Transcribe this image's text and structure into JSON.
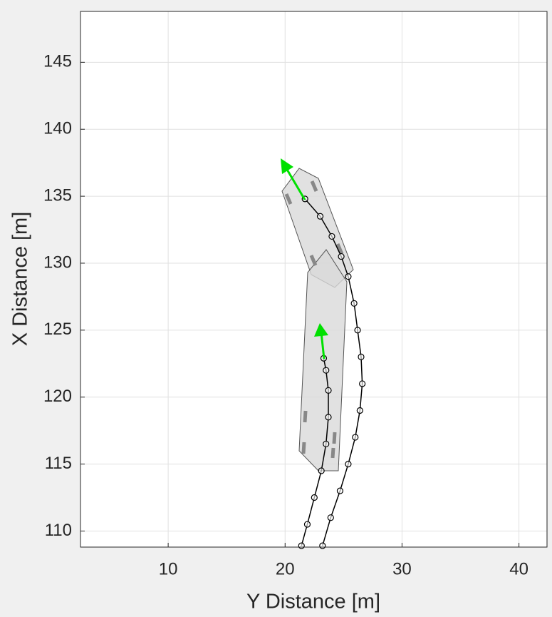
{
  "chart_data": {
    "type": "line",
    "xlabel": "Y Distance [m]",
    "ylabel": "X Distance [m]",
    "xlim": [
      2.5,
      42.4
    ],
    "ylim": [
      108.8,
      148.8
    ],
    "xticks": [
      10,
      20,
      30,
      40
    ],
    "yticks": [
      110,
      115,
      120,
      125,
      130,
      135,
      140,
      145
    ],
    "grid": true,
    "marker": "o",
    "series": [
      {
        "color": "#000000",
        "x": [
          23.2,
          23.9,
          24.7,
          25.4,
          26.0,
          26.4,
          26.6,
          26.5,
          26.2,
          25.9,
          25.4,
          24.8,
          24.0,
          23.0,
          21.7
        ],
        "values": [
          108.9,
          111,
          113,
          115,
          117,
          119,
          121,
          123,
          125,
          127,
          129,
          130.5,
          132,
          133.5,
          134.8
        ]
      },
      {
        "color": "#000000",
        "x": [
          21.4,
          21.9,
          22.5,
          23.1,
          23.5,
          23.7,
          23.7,
          23.5,
          23.3
        ],
        "values": [
          108.9,
          110.5,
          112.5,
          114.5,
          116.5,
          118.5,
          120.5,
          122,
          122.9
        ]
      }
    ]
  }
}
